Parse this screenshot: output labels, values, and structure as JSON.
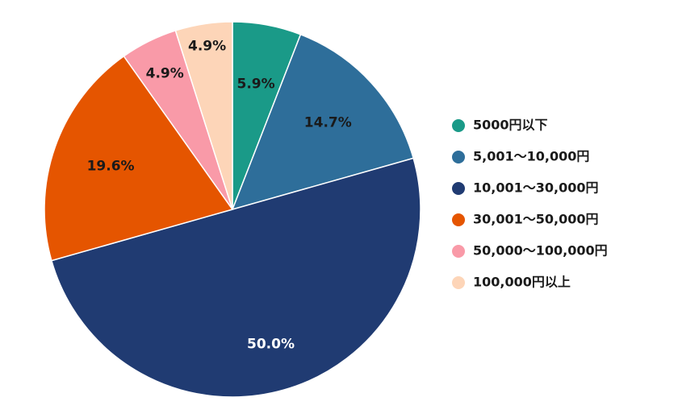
{
  "chart_data": {
    "type": "pie",
    "title": "",
    "start_angle_deg": 0,
    "direction": "clockwise",
    "legend_position": "right",
    "slices": [
      {
        "label": "5000円以下",
        "value": 5.9,
        "display": "5.9%",
        "color": "#1a9a88",
        "label_color": "#1a1a1a"
      },
      {
        "label": "5,001～10,000円",
        "value": 14.7,
        "display": "14.7%",
        "color": "#2e6e9a",
        "label_color": "#1a1a1a"
      },
      {
        "label": "10,001～30,000円",
        "value": 50.0,
        "display": "50.0%",
        "color": "#203b72",
        "label_color": "#ffffff"
      },
      {
        "label": "30,001～50,000円",
        "value": 19.6,
        "display": "19.6%",
        "color": "#e55500",
        "label_color": "#1a1a1a"
      },
      {
        "label": "50,000～100,000円",
        "value": 4.9,
        "display": "4.9%",
        "color": "#f99aa8",
        "label_color": "#1a1a1a"
      },
      {
        "label": "100,000円以上",
        "value": 4.9,
        "display": "4.9%",
        "color": "#fdd5b8",
        "label_color": "#1a1a1a"
      }
    ]
  }
}
